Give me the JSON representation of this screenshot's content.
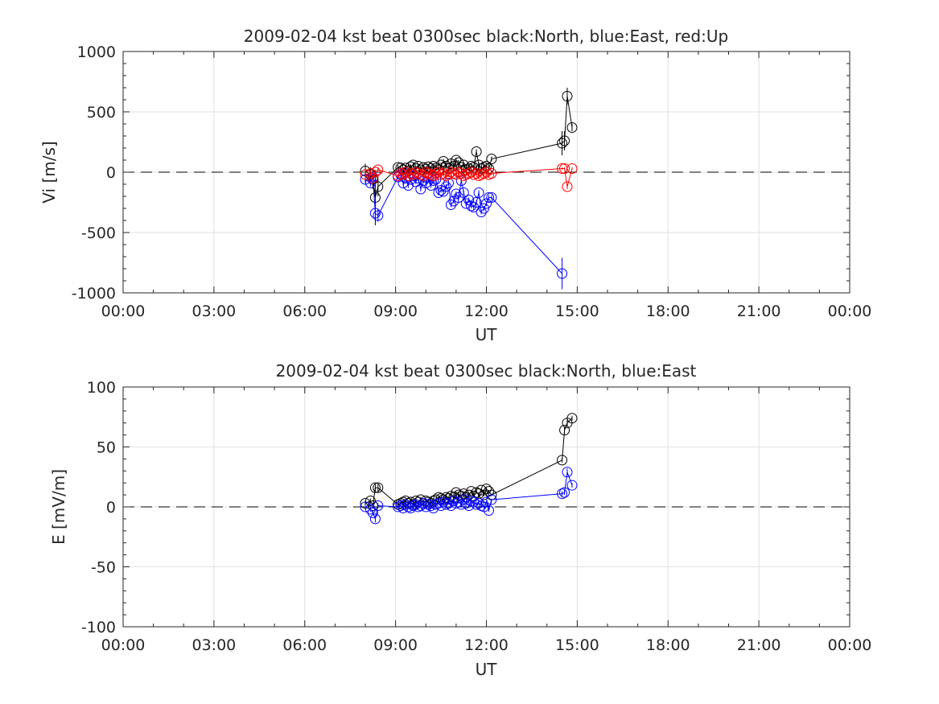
{
  "chart_data": [
    {
      "type": "scatter",
      "title": "2009-02-04 kst beat 0300sec black:North, blue:East, red:Up",
      "xlabel": "UT",
      "ylabel": "Vi [m/s]",
      "xlim": [
        0,
        24
      ],
      "ylim": [
        -1000,
        1000
      ],
      "xticks": [
        0,
        3,
        6,
        9,
        12,
        15,
        18,
        21,
        24
      ],
      "xtick_labels": [
        "00:00",
        "03:00",
        "06:00",
        "09:00",
        "12:00",
        "15:00",
        "18:00",
        "21:00",
        "00:00"
      ],
      "yticks": [
        -1000,
        -500,
        0,
        500,
        1000
      ],
      "ytick_labels": [
        "-1000",
        "-500",
        "0",
        "500",
        "1000"
      ],
      "grid": true,
      "zero_line": "dashed",
      "series": [
        {
          "name": "North",
          "color": "#000000",
          "x": [
            8.0,
            8.17,
            8.25,
            8.33,
            8.42,
            9.08,
            9.17,
            9.25,
            9.33,
            9.42,
            9.5,
            9.58,
            9.67,
            9.75,
            9.83,
            9.92,
            10.0,
            10.08,
            10.17,
            10.25,
            10.33,
            10.42,
            10.5,
            10.58,
            10.67,
            10.75,
            10.83,
            10.92,
            11.0,
            11.08,
            11.17,
            11.25,
            11.33,
            11.42,
            11.5,
            11.58,
            11.67,
            11.75,
            11.83,
            11.92,
            12.0,
            12.08,
            12.17,
            14.5,
            14.58,
            14.67,
            14.83
          ],
          "y": [
            10,
            -20,
            -60,
            -210,
            -120,
            40,
            35,
            20,
            35,
            10,
            45,
            60,
            30,
            50,
            20,
            40,
            25,
            45,
            30,
            50,
            35,
            20,
            60,
            90,
            50,
            30,
            70,
            50,
            100,
            80,
            40,
            60,
            20,
            30,
            50,
            40,
            170,
            60,
            30,
            40,
            50,
            30,
            110,
            240,
            260,
            630,
            370
          ],
          "err": [
            60,
            60,
            80,
            230,
            80,
            20,
            20,
            20,
            20,
            20,
            20,
            20,
            20,
            20,
            20,
            20,
            20,
            20,
            20,
            20,
            20,
            20,
            20,
            20,
            20,
            20,
            20,
            20,
            20,
            20,
            20,
            20,
            20,
            20,
            20,
            20,
            20,
            20,
            20,
            20,
            20,
            20,
            20,
            100,
            80,
            70,
            30
          ]
        },
        {
          "name": "East",
          "color": "#0000ff",
          "x": [
            8.0,
            8.17,
            8.25,
            8.33,
            8.42,
            9.08,
            9.17,
            9.25,
            9.33,
            9.42,
            9.5,
            9.58,
            9.67,
            9.75,
            9.83,
            9.92,
            10.0,
            10.08,
            10.17,
            10.25,
            10.33,
            10.42,
            10.5,
            10.58,
            10.67,
            10.75,
            10.83,
            10.92,
            11.0,
            11.08,
            11.17,
            11.25,
            11.33,
            11.42,
            11.5,
            11.58,
            11.67,
            11.75,
            11.83,
            11.92,
            12.0,
            12.08,
            12.17,
            14.5
          ],
          "y": [
            -60,
            -90,
            -40,
            -340,
            -360,
            -40,
            -20,
            -90,
            -50,
            -110,
            -60,
            -30,
            -80,
            -50,
            -140,
            -70,
            -90,
            -40,
            -110,
            -70,
            -60,
            -170,
            -150,
            -160,
            -120,
            -90,
            -270,
            -240,
            -180,
            -210,
            -70,
            -170,
            -260,
            -230,
            -280,
            -290,
            -250,
            -170,
            -330,
            -300,
            -260,
            -210,
            -210,
            -840
          ],
          "err": [
            30,
            30,
            30,
            50,
            50,
            20,
            20,
            20,
            20,
            20,
            20,
            20,
            20,
            20,
            20,
            20,
            20,
            20,
            20,
            20,
            20,
            20,
            20,
            20,
            20,
            20,
            20,
            20,
            20,
            20,
            20,
            20,
            20,
            20,
            20,
            20,
            20,
            20,
            20,
            20,
            20,
            20,
            20,
            130
          ]
        },
        {
          "name": "Up",
          "color": "#ff0000",
          "x": [
            8.0,
            8.17,
            8.25,
            8.33,
            8.42,
            9.08,
            9.17,
            9.25,
            9.33,
            9.42,
            9.5,
            9.58,
            9.67,
            9.75,
            9.83,
            9.92,
            10.0,
            10.08,
            10.17,
            10.25,
            10.33,
            10.42,
            10.5,
            10.58,
            10.67,
            10.75,
            10.83,
            10.92,
            11.0,
            11.08,
            11.17,
            11.25,
            11.33,
            11.42,
            11.5,
            11.58,
            11.67,
            11.75,
            11.83,
            11.92,
            12.0,
            12.08,
            12.17,
            14.5,
            14.58,
            14.67,
            14.83
          ],
          "y": [
            -20,
            -10,
            -50,
            0,
            20,
            -30,
            -10,
            -20,
            0,
            -30,
            -10,
            -20,
            0,
            -10,
            -20,
            -30,
            0,
            -10,
            -20,
            -30,
            -10,
            0,
            -20,
            -10,
            -30,
            -20,
            0,
            -10,
            -20,
            0,
            -10,
            -30,
            -20,
            -10,
            0,
            -20,
            -10,
            -30,
            -20,
            -10,
            0,
            -20,
            -10,
            30,
            30,
            -120,
            30
          ],
          "err": [
            20,
            20,
            20,
            20,
            20,
            15,
            15,
            15,
            15,
            15,
            15,
            15,
            15,
            15,
            15,
            15,
            15,
            15,
            15,
            15,
            15,
            15,
            15,
            15,
            15,
            15,
            15,
            15,
            15,
            15,
            15,
            15,
            15,
            15,
            15,
            15,
            15,
            15,
            15,
            15,
            15,
            15,
            15,
            10,
            10,
            20,
            10
          ]
        }
      ]
    },
    {
      "type": "scatter",
      "title": "2009-02-04 kst beat 0300sec black:North, blue:East",
      "xlabel": "UT",
      "ylabel": "E [mV/m]",
      "xlim": [
        0,
        24
      ],
      "ylim": [
        -100,
        100
      ],
      "xticks": [
        0,
        3,
        6,
        9,
        12,
        15,
        18,
        21,
        24
      ],
      "xtick_labels": [
        "00:00",
        "03:00",
        "06:00",
        "09:00",
        "12:00",
        "15:00",
        "18:00",
        "21:00",
        "00:00"
      ],
      "yticks": [
        -100,
        -50,
        0,
        50,
        100
      ],
      "ytick_labels": [
        "-100",
        "-50",
        "0",
        "50",
        "100"
      ],
      "grid": true,
      "zero_line": "dashed",
      "series": [
        {
          "name": "North",
          "color": "#000000",
          "x": [
            8.0,
            8.17,
            8.25,
            8.33,
            8.42,
            9.08,
            9.17,
            9.25,
            9.33,
            9.42,
            9.5,
            9.58,
            9.67,
            9.75,
            9.83,
            9.92,
            10.0,
            10.08,
            10.17,
            10.25,
            10.33,
            10.42,
            10.5,
            10.58,
            10.67,
            10.75,
            10.83,
            10.92,
            11.0,
            11.08,
            11.17,
            11.25,
            11.33,
            11.42,
            11.5,
            11.58,
            11.67,
            11.75,
            11.83,
            11.92,
            12.0,
            12.08,
            12.17,
            14.5,
            14.58,
            14.67,
            14.83
          ],
          "y": [
            3,
            5,
            1,
            16,
            16,
            2,
            3,
            4,
            5,
            3,
            4,
            2,
            5,
            4,
            6,
            3,
            5,
            4,
            3,
            5,
            6,
            8,
            7,
            6,
            8,
            7,
            9,
            8,
            12,
            10,
            9,
            11,
            8,
            10,
            13,
            9,
            12,
            11,
            14,
            10,
            15,
            13,
            10,
            39,
            64,
            70,
            74
          ],
          "err": [
            2,
            2,
            2,
            3,
            3,
            1,
            1,
            1,
            1,
            1,
            1,
            1,
            1,
            1,
            1,
            1,
            1,
            1,
            1,
            1,
            1,
            1,
            1,
            1,
            1,
            1,
            1,
            1,
            1,
            1,
            1,
            1,
            1,
            1,
            1,
            1,
            1,
            1,
            1,
            1,
            1,
            1,
            1,
            2,
            3,
            3,
            2
          ]
        },
        {
          "name": "East",
          "color": "#0000ff",
          "x": [
            8.0,
            8.17,
            8.25,
            8.33,
            8.42,
            9.08,
            9.17,
            9.25,
            9.33,
            9.42,
            9.5,
            9.58,
            9.67,
            9.75,
            9.83,
            9.92,
            10.0,
            10.08,
            10.17,
            10.25,
            10.33,
            10.42,
            10.5,
            10.58,
            10.67,
            10.75,
            10.83,
            10.92,
            11.0,
            11.08,
            11.17,
            11.25,
            11.33,
            11.42,
            11.5,
            11.58,
            11.67,
            11.75,
            11.83,
            11.92,
            12.0,
            12.08,
            12.17,
            14.5,
            14.58,
            14.67,
            14.83
          ],
          "y": [
            0,
            -2,
            -5,
            -10,
            1,
            0,
            1,
            -1,
            2,
            0,
            -1,
            1,
            2,
            0,
            1,
            3,
            0,
            2,
            1,
            -1,
            2,
            3,
            1,
            4,
            2,
            3,
            1,
            5,
            3,
            4,
            2,
            6,
            3,
            1,
            5,
            4,
            2,
            3,
            1,
            0,
            4,
            -3,
            6,
            11,
            12,
            29,
            18
          ],
          "err": [
            2,
            2,
            2,
            3,
            2,
            1,
            1,
            1,
            1,
            1,
            1,
            1,
            1,
            1,
            1,
            1,
            1,
            1,
            1,
            1,
            1,
            1,
            1,
            1,
            1,
            1,
            1,
            1,
            1,
            1,
            1,
            1,
            1,
            1,
            1,
            1,
            1,
            1,
            1,
            1,
            1,
            1,
            1,
            2,
            2,
            3,
            2
          ]
        }
      ]
    }
  ]
}
